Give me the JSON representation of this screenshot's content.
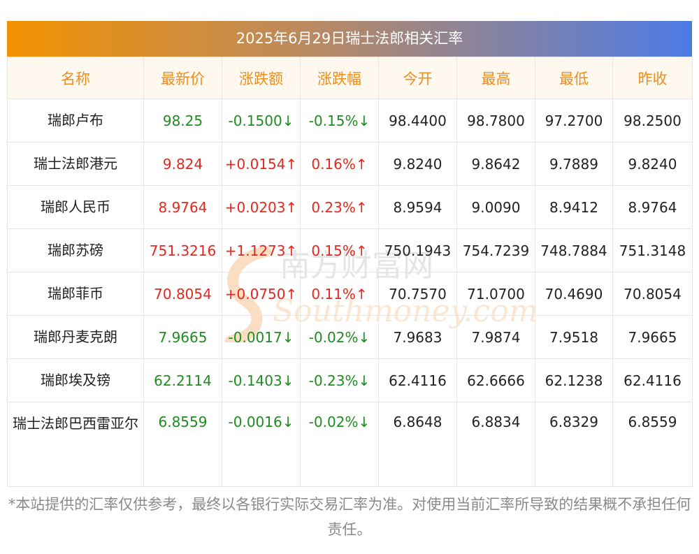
{
  "title": "2025年6月29日瑞士法郎相关汇率",
  "headers": [
    "名称",
    "最新价",
    "涨跌额",
    "涨跌幅",
    "今开",
    "最高",
    "最低",
    "昨收"
  ],
  "rows": [
    {
      "name": "瑞郎卢布",
      "latest": "98.25",
      "change": "-0.1500↓",
      "pct": "-0.15%↓",
      "open": "98.4400",
      "high": "98.7800",
      "low": "97.2700",
      "prev": "98.2500",
      "dir": "down"
    },
    {
      "name": "瑞士法郎港元",
      "latest": "9.824",
      "change": "+0.0154↑",
      "pct": "0.16%↑",
      "open": "9.8240",
      "high": "9.8642",
      "low": "9.7889",
      "prev": "9.8240",
      "dir": "up"
    },
    {
      "name": "瑞郎人民币",
      "latest": "8.9764",
      "change": "+0.0203↑",
      "pct": "0.23%↑",
      "open": "8.9594",
      "high": "9.0090",
      "low": "8.9412",
      "prev": "8.9764",
      "dir": "up"
    },
    {
      "name": "瑞郎苏磅",
      "latest": "751.3216",
      "change": "+1.1273↑",
      "pct": "0.15%↑",
      "open": "750.1943",
      "high": "754.7239",
      "low": "748.7884",
      "prev": "751.3148",
      "dir": "up"
    },
    {
      "name": "瑞郎菲币",
      "latest": "70.8054",
      "change": "+0.0750↑",
      "pct": "0.11%↑",
      "open": "70.7570",
      "high": "71.0700",
      "low": "70.4690",
      "prev": "70.8054",
      "dir": "up"
    },
    {
      "name": "瑞郎丹麦克朗",
      "latest": "7.9665",
      "change": "-0.0017↓",
      "pct": "-0.02%↓",
      "open": "7.9683",
      "high": "7.9874",
      "low": "7.9518",
      "prev": "7.9665",
      "dir": "down"
    },
    {
      "name": "瑞郎埃及镑",
      "latest": "62.2114",
      "change": "-0.1403↓",
      "pct": "-0.23%↓",
      "open": "62.4116",
      "high": "62.6666",
      "low": "62.1238",
      "prev": "62.4116",
      "dir": "down"
    },
    {
      "name": "瑞士法郎巴西雷亚尔",
      "latest": "6.8559",
      "change": "-0.0016↓",
      "pct": "-0.02%↓",
      "open": "6.8648",
      "high": "6.8834",
      "low": "6.8329",
      "prev": "6.8559",
      "dir": "down"
    }
  ],
  "watermark": {
    "cn": "南方财富网",
    "en": "Southmoney.com"
  },
  "footnote": "*本站提供的汇率仅供参考，最终以各银行实际交易汇率为准。对使用当前汇率所导致的结果概不承担任何责任。",
  "colors": {
    "up": "#e8261d",
    "down": "#1e8c1e",
    "header_text": "#f08d1a",
    "header_bg": "#fff8ee",
    "gradient_start": "#f39200",
    "gradient_end": "#4d7ae8"
  }
}
